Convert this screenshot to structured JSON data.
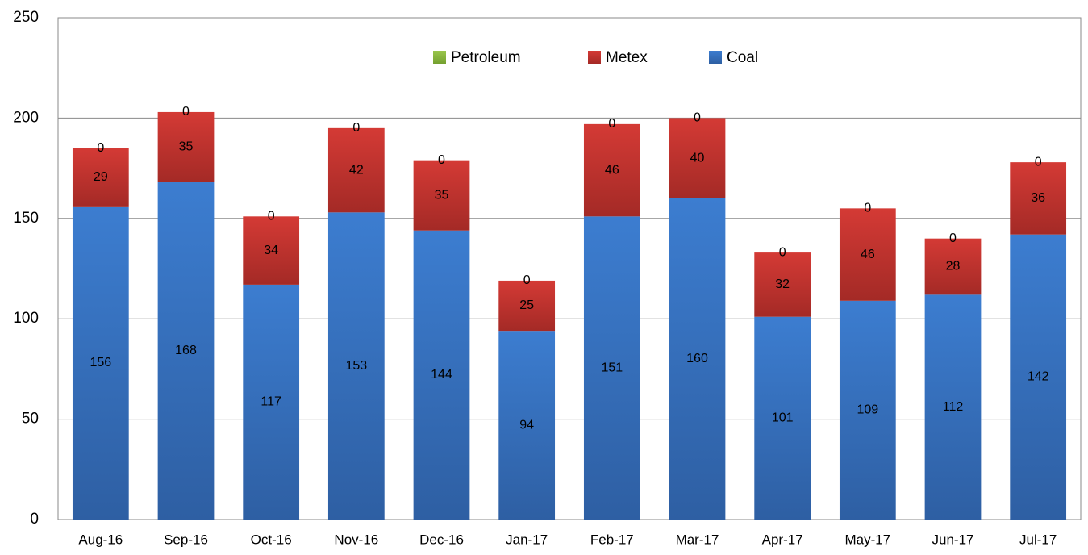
{
  "chart_data": {
    "type": "stacked_bar",
    "categories": [
      "Aug-16",
      "Sep-16",
      "Oct-16",
      "Nov-16",
      "Dec-16",
      "Jan-17",
      "Feb-17",
      "Mar-17",
      "Apr-17",
      "May-17",
      "Jun-17",
      "Jul-17"
    ],
    "series": [
      {
        "name": "Coal",
        "color": "#3a78c9",
        "values": [
          156,
          168,
          117,
          153,
          144,
          94,
          151,
          160,
          101,
          109,
          112,
          142
        ]
      },
      {
        "name": "Metex",
        "color": "#c9302c",
        "values": [
          29,
          35,
          34,
          42,
          35,
          25,
          46,
          40,
          32,
          46,
          28,
          36
        ]
      },
      {
        "name": "Petroleum",
        "color": "#8ab93e",
        "values": [
          0,
          0,
          0,
          0,
          0,
          0,
          0,
          0,
          0,
          0,
          0,
          0
        ]
      }
    ],
    "legend_order": [
      "Petroleum",
      "Metex",
      "Coal"
    ],
    "ylim": [
      0,
      250
    ],
    "yticks": [
      0,
      50,
      100,
      150,
      200,
      250
    ],
    "grid": true,
    "legend": "top"
  }
}
